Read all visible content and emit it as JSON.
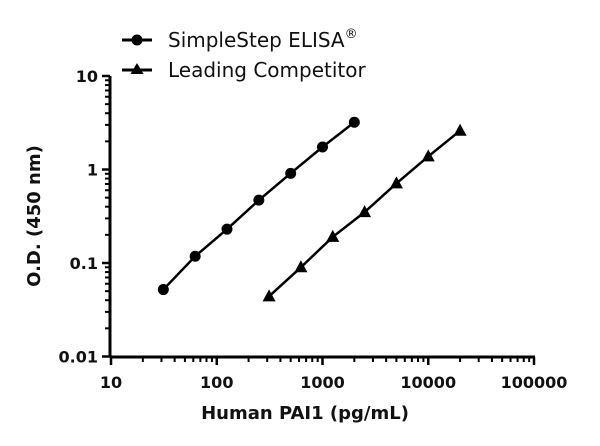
{
  "chart_data": {
    "type": "line",
    "title": "",
    "xlabel": "Human PAI1 (pg/mL)",
    "ylabel": "O.D. (450 nm)",
    "xscale": "log",
    "yscale": "log",
    "xlim": [
      10,
      100000
    ],
    "ylim": [
      0.01,
      10
    ],
    "x_ticks": [
      "10",
      "100",
      "1000",
      "10000",
      "100000"
    ],
    "y_ticks": [
      "10",
      "1",
      "0.1",
      "0.01"
    ],
    "grid": false,
    "legend_position": "top-left",
    "series": [
      {
        "name": "SimpleStep ELISA®",
        "marker": "circle",
        "color": "#000000",
        "x": [
          31.25,
          62.5,
          125,
          250,
          500,
          1000,
          2000
        ],
        "y": [
          0.052,
          0.118,
          0.23,
          0.47,
          0.91,
          1.74,
          3.2
        ]
      },
      {
        "name": "Leading Competitor",
        "marker": "triangle",
        "color": "#000000",
        "x": [
          312.5,
          625,
          1250,
          2500,
          5000,
          10000,
          20000
        ],
        "y": [
          0.044,
          0.09,
          0.19,
          0.35,
          0.71,
          1.38,
          2.6
        ]
      }
    ]
  },
  "legend": {
    "items": [
      {
        "label": "SimpleStep ELISA",
        "superscript": "®",
        "marker": "circle"
      },
      {
        "label": "Leading Competitor",
        "superscript": "",
        "marker": "triangle"
      }
    ]
  }
}
